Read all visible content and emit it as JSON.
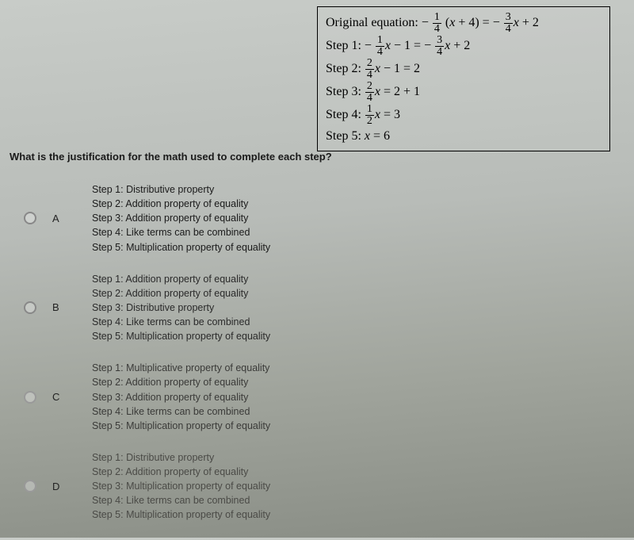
{
  "equation_box": {
    "original_label": "Original equation:",
    "original_html": "− <span class='frac'><span class='n'>1</span><span class='d'>4</span></span> (<i>x</i> + 4) = − <span class='frac'><span class='n'>3</span><span class='d'>4</span></span><i>x</i> + 2",
    "steps": [
      {
        "label": "Step 1:",
        "html": "− <span class='frac'><span class='n'>1</span><span class='d'>4</span></span><i>x</i> − 1 = − <span class='frac'><span class='n'>3</span><span class='d'>4</span></span><i>x</i> + 2"
      },
      {
        "label": "Step 2:",
        "html": "<span class='frac'><span class='n'>2</span><span class='d'>4</span></span><i>x</i> − 1 = 2"
      },
      {
        "label": "Step 3:",
        "html": "<span class='frac'><span class='n'>2</span><span class='d'>4</span></span><i>x</i> = 2 + 1"
      },
      {
        "label": "Step 4:",
        "html": "<span class='frac'><span class='n'>1</span><span class='d'>2</span></span><i>x</i> = 3"
      },
      {
        "label": "Step 5:",
        "html": "<i>x</i> = 6"
      }
    ]
  },
  "question": "What is the justification for the math used to complete each step?",
  "options": [
    {
      "letter": "A",
      "lines": [
        "Step 1: Distributive property",
        "Step 2: Addition property of equality",
        "Step 3: Addition property of equality",
        "Step 4: Like terms can be combined",
        "Step 5: Multiplication property of equality"
      ]
    },
    {
      "letter": "B",
      "lines": [
        "Step 1: Addition property of equality",
        "Step 2: Addition property of equality",
        "Step 3: Distributive property",
        "Step 4: Like terms can be combined",
        "Step 5: Multiplication property of equality"
      ]
    },
    {
      "letter": "C",
      "lines": [
        "Step 1: Multiplicative property of equality",
        "Step 2: Addition property of equality",
        "Step 3: Addition property of equality",
        "Step 4: Like terms can be combined",
        "Step 5: Multiplication property of equality"
      ]
    },
    {
      "letter": "D",
      "lines": [
        "Step 1: Distributive property",
        "Step 2: Addition property of equality",
        "Step 3: Multiplication property of equality",
        "Step 4: Like terms can be combined",
        "Step 5: Multiplication property of equality"
      ]
    }
  ]
}
